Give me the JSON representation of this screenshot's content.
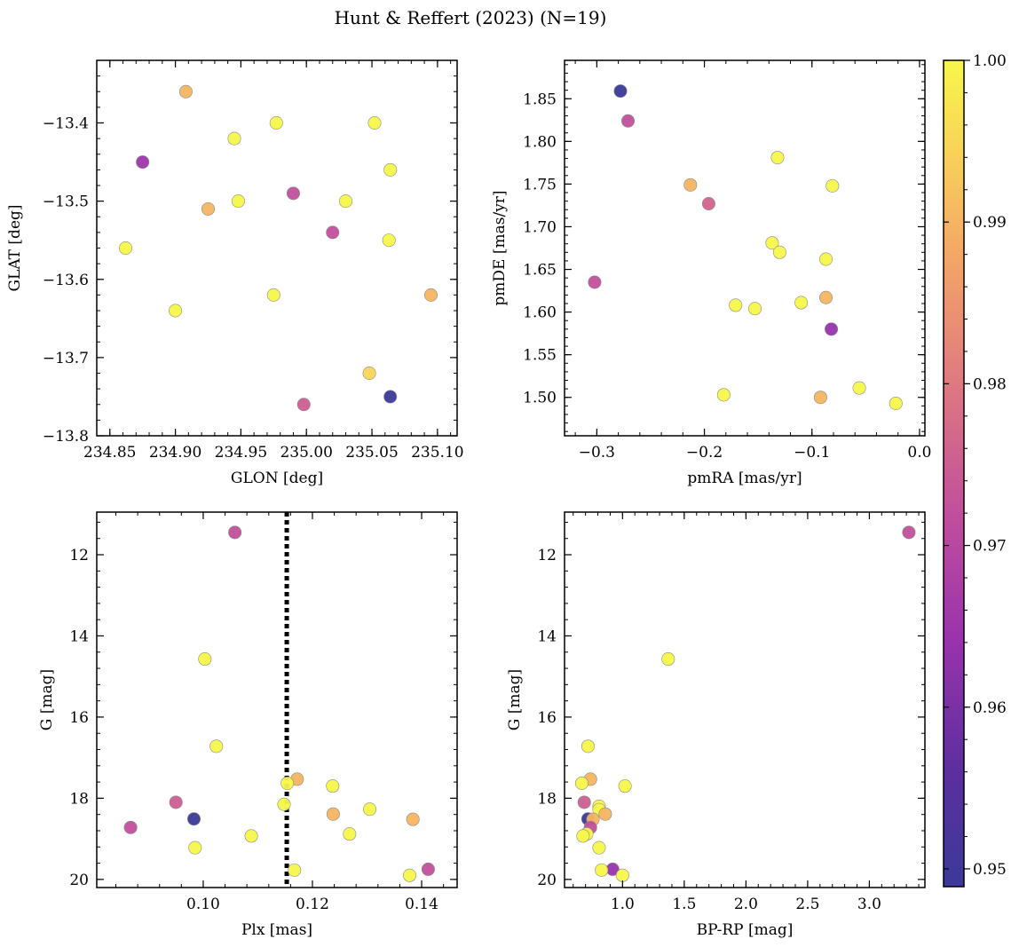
{
  "figure": {
    "title": "Hunt & Reffert (2023) (N=19)",
    "colorbar": {
      "colormap": "plasma",
      "vmin": 0.9489,
      "vmax": 1.0,
      "ticks": [
        0.95,
        0.96,
        0.97,
        0.98,
        0.99,
        1.0
      ],
      "tick_labels": [
        "0.95",
        "0.96",
        "0.97",
        "0.98",
        "0.99",
        "1.00"
      ]
    }
  },
  "chart_data": [
    {
      "type": "scatter",
      "id": "sky",
      "title": "",
      "xlabel": "GLON [deg]",
      "ylabel": "GLAT [deg]",
      "xlim": [
        234.84,
        235.115
      ],
      "ylim": [
        -13.8,
        -13.32
      ],
      "xticks": [
        234.85,
        234.9,
        234.95,
        235.0,
        235.05,
        235.1
      ],
      "xtick_labels": [
        "234.85",
        "234.90",
        "234.95",
        "235.00",
        "235.05",
        "235.10"
      ],
      "yticks": [
        -13.8,
        -13.7,
        -13.6,
        -13.5,
        -13.4
      ],
      "ytick_labels": [
        "−13.8",
        "−13.7",
        "−13.6",
        "−13.5",
        "−13.4"
      ],
      "points": [
        {
          "x": 234.908,
          "y": -13.36,
          "c": 0.99
        },
        {
          "x": 234.945,
          "y": -13.42,
          "c": 1.0
        },
        {
          "x": 234.977,
          "y": -13.4,
          "c": 1.0
        },
        {
          "x": 235.052,
          "y": -13.4,
          "c": 1.0
        },
        {
          "x": 234.875,
          "y": -13.45,
          "c": 0.965
        },
        {
          "x": 235.064,
          "y": -13.46,
          "c": 1.0
        },
        {
          "x": 234.99,
          "y": -13.49,
          "c": 0.972
        },
        {
          "x": 234.948,
          "y": -13.5,
          "c": 1.0
        },
        {
          "x": 235.03,
          "y": -13.5,
          "c": 1.0
        },
        {
          "x": 234.925,
          "y": -13.51,
          "c": 0.99
        },
        {
          "x": 235.02,
          "y": -13.54,
          "c": 0.972
        },
        {
          "x": 234.862,
          "y": -13.56,
          "c": 1.0
        },
        {
          "x": 235.063,
          "y": -13.55,
          "c": 1.0
        },
        {
          "x": 234.975,
          "y": -13.62,
          "c": 1.0
        },
        {
          "x": 235.095,
          "y": -13.62,
          "c": 0.99
        },
        {
          "x": 234.9,
          "y": -13.64,
          "c": 1.0
        },
        {
          "x": 235.048,
          "y": -13.72,
          "c": 0.995
        },
        {
          "x": 235.064,
          "y": -13.75,
          "c": 0.949
        },
        {
          "x": 234.998,
          "y": -13.76,
          "c": 0.975
        }
      ]
    },
    {
      "type": "scatter",
      "id": "pm",
      "title": "",
      "xlabel": "pmRA [mas/yr]",
      "ylabel": "pmDE [mas/yr]",
      "xlim": [
        -0.33,
        0.005
      ],
      "ylim": [
        1.455,
        1.895
      ],
      "xticks": [
        -0.3,
        -0.2,
        -0.1,
        0.0
      ],
      "xtick_labels": [
        "−0.3",
        "−0.2",
        "−0.1",
        "0.0"
      ],
      "yticks": [
        1.5,
        1.55,
        1.6,
        1.65,
        1.7,
        1.75,
        1.8,
        1.85
      ],
      "ytick_labels": [
        "1.50",
        "1.55",
        "1.60",
        "1.65",
        "1.70",
        "1.75",
        "1.80",
        "1.85"
      ],
      "points": [
        {
          "x": -0.278,
          "y": 1.859,
          "c": 0.949
        },
        {
          "x": -0.271,
          "y": 1.824,
          "c": 0.972
        },
        {
          "x": -0.132,
          "y": 1.781,
          "c": 1.0
        },
        {
          "x": -0.213,
          "y": 1.749,
          "c": 0.99
        },
        {
          "x": -0.081,
          "y": 1.748,
          "c": 1.0
        },
        {
          "x": -0.196,
          "y": 1.727,
          "c": 0.976
        },
        {
          "x": -0.137,
          "y": 1.681,
          "c": 1.0
        },
        {
          "x": -0.13,
          "y": 1.67,
          "c": 1.0
        },
        {
          "x": -0.087,
          "y": 1.662,
          "c": 1.0
        },
        {
          "x": -0.302,
          "y": 1.635,
          "c": 0.972
        },
        {
          "x": -0.087,
          "y": 1.617,
          "c": 0.99
        },
        {
          "x": -0.11,
          "y": 1.611,
          "c": 1.0
        },
        {
          "x": -0.171,
          "y": 1.608,
          "c": 1.0
        },
        {
          "x": -0.153,
          "y": 1.604,
          "c": 1.0
        },
        {
          "x": -0.082,
          "y": 1.58,
          "c": 0.964
        },
        {
          "x": -0.056,
          "y": 1.511,
          "c": 1.0
        },
        {
          "x": -0.182,
          "y": 1.503,
          "c": 1.0
        },
        {
          "x": -0.092,
          "y": 1.5,
          "c": 0.99
        },
        {
          "x": -0.022,
          "y": 1.493,
          "c": 1.0
        }
      ]
    },
    {
      "type": "scatter",
      "id": "plx",
      "title": "",
      "xlabel": "Plx [mas]",
      "ylabel": "G [mag]",
      "xlim": [
        0.0805,
        0.1465
      ],
      "ylim": [
        20.2,
        10.95
      ],
      "xticks": [
        0.1,
        0.12,
        0.14
      ],
      "xtick_labels": [
        "0.10",
        "0.12",
        "0.14"
      ],
      "yticks": [
        12,
        14,
        16,
        18,
        20
      ],
      "ytick_labels": [
        "12",
        "14",
        "16",
        "18",
        "20"
      ],
      "vline": {
        "x": 0.1153,
        "style": "dotted"
      },
      "points": [
        {
          "x": 0.1058,
          "y": 11.45,
          "c": 0.972
        },
        {
          "x": 0.1003,
          "y": 14.57,
          "c": 1.0
        },
        {
          "x": 0.1024,
          "y": 16.72,
          "c": 1.0
        },
        {
          "x": 0.1172,
          "y": 17.53,
          "c": 0.99
        },
        {
          "x": 0.1154,
          "y": 17.63,
          "c": 1.0
        },
        {
          "x": 0.1237,
          "y": 17.7,
          "c": 1.0
        },
        {
          "x": 0.095,
          "y": 18.1,
          "c": 0.975
        },
        {
          "x": 0.1148,
          "y": 18.15,
          "c": 1.0
        },
        {
          "x": 0.1305,
          "y": 18.27,
          "c": 1.0
        },
        {
          "x": 0.1238,
          "y": 18.39,
          "c": 0.99
        },
        {
          "x": 0.0983,
          "y": 18.51,
          "c": 0.949
        },
        {
          "x": 0.1384,
          "y": 18.52,
          "c": 0.99
        },
        {
          "x": 0.0867,
          "y": 18.72,
          "c": 0.972
        },
        {
          "x": 0.1268,
          "y": 18.88,
          "c": 1.0
        },
        {
          "x": 0.1088,
          "y": 18.93,
          "c": 1.0
        },
        {
          "x": 0.0985,
          "y": 19.22,
          "c": 1.0
        },
        {
          "x": 0.1412,
          "y": 19.75,
          "c": 0.972
        },
        {
          "x": 0.1167,
          "y": 19.77,
          "c": 1.0
        },
        {
          "x": 0.1378,
          "y": 19.9,
          "c": 1.0
        }
      ]
    },
    {
      "type": "scatter",
      "id": "cmd",
      "title": "",
      "xlabel": "BP-RP [mag]",
      "ylabel": "G [mag]",
      "xlim": [
        0.53,
        3.45
      ],
      "ylim": [
        20.2,
        10.95
      ],
      "xticks": [
        1.0,
        1.5,
        2.0,
        2.5,
        3.0
      ],
      "xtick_labels": [
        "1.0",
        "1.5",
        "2.0",
        "2.5",
        "3.0"
      ],
      "yticks": [
        12,
        14,
        16,
        18,
        20
      ],
      "ytick_labels": [
        "12",
        "14",
        "16",
        "18",
        "20"
      ],
      "points": [
        {
          "x": 3.32,
          "y": 11.45,
          "c": 0.972
        },
        {
          "x": 1.37,
          "y": 14.57,
          "c": 1.0
        },
        {
          "x": 0.72,
          "y": 16.72,
          "c": 1.0
        },
        {
          "x": 0.74,
          "y": 17.53,
          "c": 0.99
        },
        {
          "x": 0.67,
          "y": 17.63,
          "c": 1.0
        },
        {
          "x": 1.02,
          "y": 17.7,
          "c": 1.0
        },
        {
          "x": 0.69,
          "y": 18.1,
          "c": 0.975
        },
        {
          "x": 0.81,
          "y": 18.2,
          "c": 1.0
        },
        {
          "x": 0.81,
          "y": 18.28,
          "c": 1.0
        },
        {
          "x": 0.86,
          "y": 18.39,
          "c": 0.99
        },
        {
          "x": 0.72,
          "y": 18.51,
          "c": 0.949
        },
        {
          "x": 0.76,
          "y": 18.52,
          "c": 0.99
        },
        {
          "x": 0.74,
          "y": 18.72,
          "c": 0.972
        },
        {
          "x": 0.71,
          "y": 18.88,
          "c": 1.0
        },
        {
          "x": 0.68,
          "y": 18.93,
          "c": 1.0
        },
        {
          "x": 0.81,
          "y": 19.22,
          "c": 1.0
        },
        {
          "x": 0.92,
          "y": 19.75,
          "c": 0.964
        },
        {
          "x": 0.83,
          "y": 19.77,
          "c": 1.0
        },
        {
          "x": 1.0,
          "y": 19.9,
          "c": 1.0
        }
      ]
    }
  ]
}
